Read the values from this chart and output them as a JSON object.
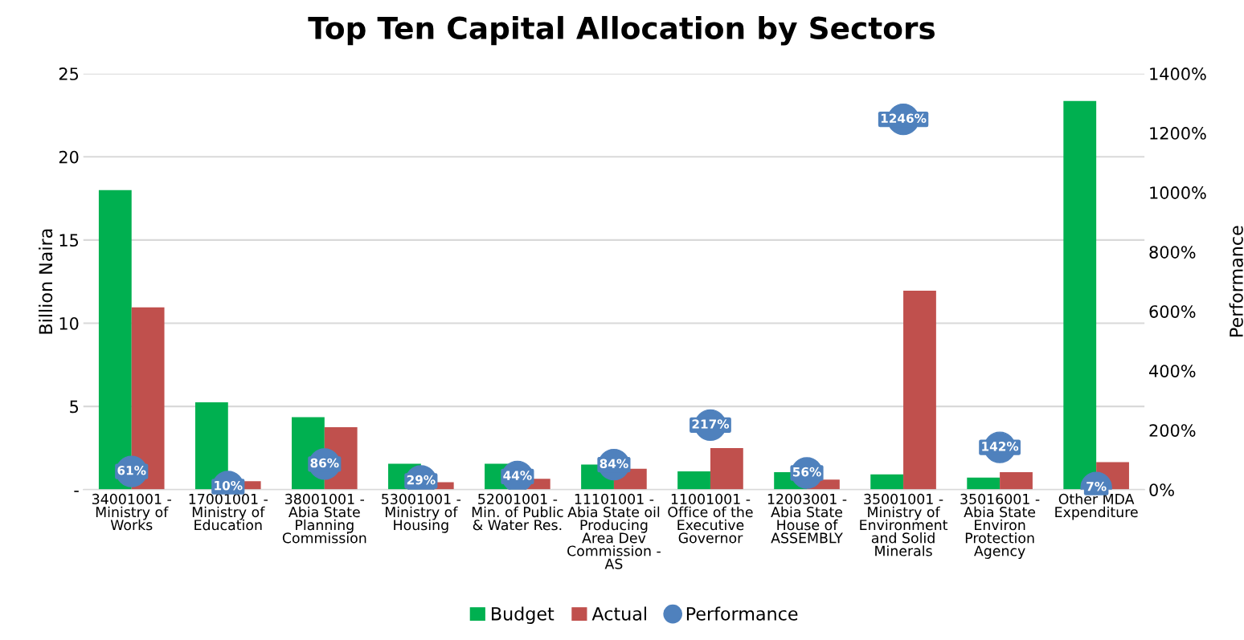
{
  "chart_data": {
    "type": "bar",
    "title": "Top Ten Capital Allocation by Sectors",
    "ylabel": "Billion Naira",
    "y2label": "Performance",
    "categories": [
      "34001001 -\nMinistry of\nWorks",
      "17001001 -\nMinistry of\nEducation",
      "38001001 -\nAbia State\nPlanning\nCommission",
      "53001001 -\nMinistry of\nHousing",
      "52001001 -\nMin. of Public\n& Water Res.",
      "11101001 -\nAbia State oil\nProducing\nArea Dev\nCommission -\nAS",
      "11001001 -\nOffice of the\nExecutive\nGovernor",
      "12003001 -\nAbia State\nHouse of\nASSEMBLY",
      "35001001 -\nMinistry of\nEnvironment\nand Solid\nMinerals",
      "35016001 -\nAbia State\nEnviron\nProtection\nAgency",
      "Other MDA\nExpenditure"
    ],
    "series": [
      {
        "name": "Budget",
        "color": "#00b050",
        "values": [
          18.0,
          5.25,
          4.35,
          1.55,
          1.55,
          1.5,
          1.1,
          1.05,
          0.92,
          0.72,
          23.35
        ]
      },
      {
        "name": "Actual",
        "color": "#c0504d",
        "values": [
          10.95,
          0.5,
          3.75,
          0.45,
          0.65,
          1.25,
          2.5,
          0.6,
          11.95,
          1.05,
          1.65
        ]
      },
      {
        "name": "Performance",
        "color": "#4f81bd",
        "type": "scatter",
        "axis": "y2",
        "value_labels": [
          "61%",
          "10%",
          "86%",
          "29%",
          "44%",
          "84%",
          "217%",
          "56%",
          "1246%",
          "142%",
          "7%"
        ],
        "values": [
          61,
          10,
          86,
          29,
          44,
          84,
          217,
          56,
          1246,
          142,
          7
        ]
      }
    ],
    "ylim": [
      0,
      25
    ],
    "yticks": [
      {
        "value": 0,
        "label": "-"
      },
      5,
      10,
      15,
      20,
      25
    ],
    "y2lim": [
      0,
      1400
    ],
    "y2ticks": [
      {
        "value": 0,
        "label": "0%"
      },
      {
        "value": 200,
        "label": "200%"
      },
      {
        "value": 400,
        "label": "400%"
      },
      {
        "value": 600,
        "label": "600%"
      },
      {
        "value": 800,
        "label": "800%"
      },
      {
        "value": 1000,
        "label": "1000%"
      },
      {
        "value": 1200,
        "label": "1200%"
      },
      {
        "value": 1400,
        "label": "1400%"
      }
    ],
    "grid": "y",
    "legend": "bottom",
    "marker": "circle"
  }
}
